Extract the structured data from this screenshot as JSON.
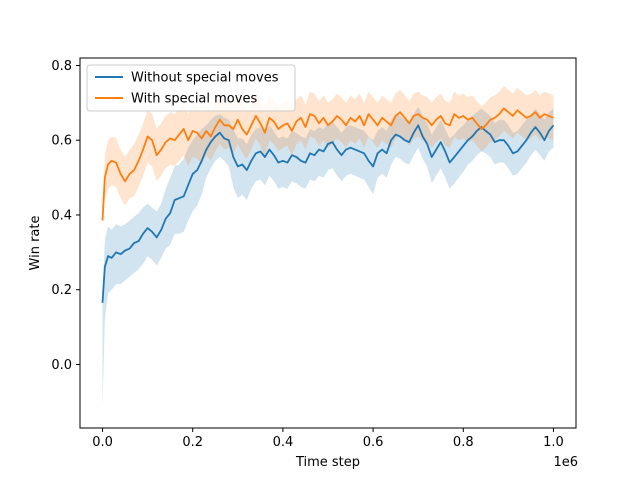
{
  "chart_data": {
    "type": "line",
    "xlabel": "Time step",
    "ylabel": "Win rate",
    "x_offset_text": "1e6",
    "xlim": [
      -0.05,
      1.05
    ],
    "ylim": [
      -0.17,
      0.82
    ],
    "xticks": [
      0.0,
      0.2,
      0.4,
      0.6,
      0.8,
      1.0
    ],
    "xtick_labels": [
      "0.0",
      "0.2",
      "0.4",
      "0.6",
      "0.8",
      "1.0"
    ],
    "yticks": [
      0.0,
      0.2,
      0.4,
      0.6,
      0.8
    ],
    "ytick_labels": [
      "0.0",
      "0.2",
      "0.4",
      "0.6",
      "0.8"
    ],
    "grid": false,
    "legend_position": "upper-left",
    "series": [
      {
        "name": "Without special moves",
        "color": "#1f77b4",
        "band_color": "#1f77b4",
        "x": [
          0.0,
          0.005,
          0.012,
          0.02,
          0.03,
          0.04,
          0.05,
          0.06,
          0.07,
          0.08,
          0.09,
          0.1,
          0.11,
          0.12,
          0.13,
          0.14,
          0.15,
          0.16,
          0.17,
          0.18,
          0.19,
          0.2,
          0.21,
          0.22,
          0.23,
          0.24,
          0.25,
          0.26,
          0.27,
          0.28,
          0.29,
          0.3,
          0.31,
          0.32,
          0.33,
          0.34,
          0.35,
          0.36,
          0.37,
          0.38,
          0.39,
          0.4,
          0.41,
          0.42,
          0.43,
          0.44,
          0.45,
          0.46,
          0.47,
          0.48,
          0.49,
          0.5,
          0.51,
          0.52,
          0.53,
          0.54,
          0.55,
          0.56,
          0.57,
          0.58,
          0.59,
          0.6,
          0.61,
          0.62,
          0.63,
          0.64,
          0.65,
          0.66,
          0.67,
          0.68,
          0.69,
          0.7,
          0.71,
          0.72,
          0.73,
          0.74,
          0.75,
          0.76,
          0.77,
          0.78,
          0.79,
          0.8,
          0.81,
          0.82,
          0.83,
          0.84,
          0.85,
          0.86,
          0.87,
          0.88,
          0.89,
          0.9,
          0.91,
          0.92,
          0.93,
          0.94,
          0.95,
          0.96,
          0.97,
          0.98,
          0.99,
          1.0
        ],
        "y": [
          0.165,
          0.26,
          0.29,
          0.285,
          0.3,
          0.295,
          0.305,
          0.31,
          0.325,
          0.33,
          0.35,
          0.365,
          0.355,
          0.34,
          0.36,
          0.39,
          0.405,
          0.44,
          0.445,
          0.45,
          0.48,
          0.51,
          0.52,
          0.545,
          0.575,
          0.595,
          0.61,
          0.62,
          0.605,
          0.6,
          0.555,
          0.53,
          0.535,
          0.52,
          0.545,
          0.565,
          0.57,
          0.555,
          0.575,
          0.56,
          0.54,
          0.545,
          0.54,
          0.56,
          0.555,
          0.545,
          0.54,
          0.565,
          0.56,
          0.575,
          0.57,
          0.59,
          0.595,
          0.575,
          0.56,
          0.575,
          0.58,
          0.575,
          0.57,
          0.565,
          0.545,
          0.53,
          0.565,
          0.575,
          0.565,
          0.6,
          0.615,
          0.61,
          0.6,
          0.595,
          0.62,
          0.64,
          0.61,
          0.59,
          0.555,
          0.575,
          0.595,
          0.57,
          0.54,
          0.555,
          0.57,
          0.585,
          0.6,
          0.61,
          0.625,
          0.635,
          0.625,
          0.615,
          0.595,
          0.6,
          0.6,
          0.585,
          0.565,
          0.57,
          0.585,
          0.6,
          0.62,
          0.635,
          0.62,
          0.6,
          0.625,
          0.64
        ],
        "upper": [
          0.165,
          0.33,
          0.37,
          0.36,
          0.375,
          0.37,
          0.375,
          0.385,
          0.395,
          0.405,
          0.42,
          0.43,
          0.42,
          0.41,
          0.43,
          0.47,
          0.5,
          0.53,
          0.535,
          0.55,
          0.58,
          0.6,
          0.615,
          0.63,
          0.64,
          0.655,
          0.665,
          0.67,
          0.66,
          0.655,
          0.63,
          0.605,
          0.605,
          0.59,
          0.615,
          0.63,
          0.635,
          0.62,
          0.64,
          0.625,
          0.605,
          0.61,
          0.605,
          0.625,
          0.62,
          0.61,
          0.605,
          0.63,
          0.625,
          0.635,
          0.63,
          0.645,
          0.65,
          0.635,
          0.62,
          0.635,
          0.64,
          0.635,
          0.63,
          0.625,
          0.61,
          0.6,
          0.625,
          0.635,
          0.625,
          0.655,
          0.67,
          0.665,
          0.655,
          0.65,
          0.67,
          0.69,
          0.665,
          0.645,
          0.615,
          0.635,
          0.655,
          0.63,
          0.605,
          0.615,
          0.63,
          0.64,
          0.655,
          0.665,
          0.675,
          0.685,
          0.675,
          0.665,
          0.645,
          0.655,
          0.655,
          0.64,
          0.62,
          0.625,
          0.64,
          0.655,
          0.67,
          0.685,
          0.67,
          0.655,
          0.675,
          0.685
        ],
        "lower": [
          -0.12,
          0.12,
          0.19,
          0.2,
          0.215,
          0.215,
          0.225,
          0.235,
          0.245,
          0.255,
          0.27,
          0.29,
          0.28,
          0.265,
          0.285,
          0.31,
          0.32,
          0.35,
          0.35,
          0.355,
          0.385,
          0.41,
          0.425,
          0.455,
          0.5,
          0.525,
          0.545,
          0.555,
          0.545,
          0.53,
          0.475,
          0.445,
          0.455,
          0.44,
          0.47,
          0.49,
          0.495,
          0.48,
          0.505,
          0.49,
          0.47,
          0.475,
          0.47,
          0.49,
          0.485,
          0.475,
          0.47,
          0.495,
          0.49,
          0.505,
          0.5,
          0.52,
          0.525,
          0.505,
          0.49,
          0.505,
          0.51,
          0.505,
          0.5,
          0.495,
          0.475,
          0.455,
          0.5,
          0.51,
          0.5,
          0.535,
          0.555,
          0.55,
          0.54,
          0.535,
          0.56,
          0.58,
          0.55,
          0.53,
          0.485,
          0.505,
          0.525,
          0.5,
          0.47,
          0.485,
          0.5,
          0.515,
          0.535,
          0.545,
          0.56,
          0.57,
          0.565,
          0.555,
          0.535,
          0.54,
          0.54,
          0.525,
          0.505,
          0.51,
          0.525,
          0.54,
          0.56,
          0.575,
          0.56,
          0.545,
          0.57,
          0.58
        ]
      },
      {
        "name": "With special moves",
        "color": "#ff7f0e",
        "band_color": "#ff7f0e",
        "x": [
          0.0,
          0.005,
          0.012,
          0.02,
          0.03,
          0.04,
          0.05,
          0.06,
          0.07,
          0.08,
          0.09,
          0.1,
          0.11,
          0.12,
          0.13,
          0.14,
          0.15,
          0.16,
          0.17,
          0.18,
          0.19,
          0.2,
          0.21,
          0.22,
          0.23,
          0.24,
          0.25,
          0.26,
          0.27,
          0.28,
          0.29,
          0.3,
          0.31,
          0.32,
          0.33,
          0.34,
          0.35,
          0.36,
          0.37,
          0.38,
          0.39,
          0.4,
          0.41,
          0.42,
          0.43,
          0.44,
          0.45,
          0.46,
          0.47,
          0.48,
          0.49,
          0.5,
          0.51,
          0.52,
          0.53,
          0.54,
          0.55,
          0.56,
          0.57,
          0.58,
          0.59,
          0.6,
          0.61,
          0.62,
          0.63,
          0.64,
          0.65,
          0.66,
          0.67,
          0.68,
          0.69,
          0.7,
          0.71,
          0.72,
          0.73,
          0.74,
          0.75,
          0.76,
          0.77,
          0.78,
          0.79,
          0.8,
          0.81,
          0.82,
          0.83,
          0.84,
          0.85,
          0.86,
          0.87,
          0.88,
          0.89,
          0.9,
          0.91,
          0.92,
          0.93,
          0.94,
          0.95,
          0.96,
          0.97,
          0.98,
          0.99,
          1.0
        ],
        "y": [
          0.385,
          0.5,
          0.535,
          0.545,
          0.54,
          0.51,
          0.49,
          0.51,
          0.52,
          0.545,
          0.575,
          0.61,
          0.6,
          0.56,
          0.575,
          0.595,
          0.605,
          0.6,
          0.615,
          0.63,
          0.6,
          0.625,
          0.62,
          0.605,
          0.625,
          0.61,
          0.635,
          0.655,
          0.64,
          0.64,
          0.63,
          0.655,
          0.63,
          0.615,
          0.64,
          0.665,
          0.645,
          0.62,
          0.66,
          0.65,
          0.63,
          0.64,
          0.645,
          0.625,
          0.65,
          0.66,
          0.635,
          0.67,
          0.665,
          0.645,
          0.66,
          0.64,
          0.65,
          0.665,
          0.655,
          0.64,
          0.66,
          0.65,
          0.665,
          0.64,
          0.67,
          0.655,
          0.64,
          0.66,
          0.65,
          0.64,
          0.665,
          0.675,
          0.66,
          0.645,
          0.665,
          0.67,
          0.66,
          0.655,
          0.64,
          0.655,
          0.665,
          0.645,
          0.64,
          0.67,
          0.66,
          0.665,
          0.655,
          0.66,
          0.645,
          0.63,
          0.64,
          0.655,
          0.66,
          0.67,
          0.685,
          0.675,
          0.665,
          0.68,
          0.67,
          0.66,
          0.665,
          0.675,
          0.66,
          0.67,
          0.665,
          0.66
        ],
        "upper": [
          0.385,
          0.56,
          0.6,
          0.61,
          0.605,
          0.575,
          0.555,
          0.575,
          0.59,
          0.615,
          0.645,
          0.68,
          0.67,
          0.63,
          0.645,
          0.665,
          0.675,
          0.67,
          0.685,
          0.7,
          0.67,
          0.695,
          0.69,
          0.675,
          0.69,
          0.675,
          0.7,
          0.72,
          0.705,
          0.7,
          0.695,
          0.72,
          0.695,
          0.68,
          0.705,
          0.725,
          0.705,
          0.685,
          0.72,
          0.71,
          0.69,
          0.7,
          0.705,
          0.69,
          0.71,
          0.72,
          0.695,
          0.73,
          0.725,
          0.705,
          0.72,
          0.7,
          0.71,
          0.725,
          0.715,
          0.7,
          0.72,
          0.71,
          0.725,
          0.7,
          0.73,
          0.715,
          0.7,
          0.72,
          0.71,
          0.7,
          0.725,
          0.735,
          0.72,
          0.705,
          0.725,
          0.73,
          0.72,
          0.715,
          0.7,
          0.715,
          0.725,
          0.705,
          0.7,
          0.73,
          0.72,
          0.725,
          0.715,
          0.72,
          0.705,
          0.69,
          0.7,
          0.715,
          0.72,
          0.73,
          0.745,
          0.735,
          0.725,
          0.74,
          0.73,
          0.72,
          0.725,
          0.735,
          0.72,
          0.73,
          0.725,
          0.72
        ],
        "lower": [
          0.385,
          0.44,
          0.47,
          0.48,
          0.475,
          0.445,
          0.425,
          0.445,
          0.45,
          0.475,
          0.505,
          0.54,
          0.53,
          0.49,
          0.505,
          0.525,
          0.535,
          0.53,
          0.545,
          0.56,
          0.53,
          0.555,
          0.55,
          0.535,
          0.56,
          0.545,
          0.57,
          0.59,
          0.575,
          0.58,
          0.565,
          0.59,
          0.565,
          0.55,
          0.575,
          0.605,
          0.585,
          0.555,
          0.6,
          0.59,
          0.57,
          0.58,
          0.585,
          0.56,
          0.59,
          0.6,
          0.575,
          0.61,
          0.605,
          0.585,
          0.6,
          0.58,
          0.59,
          0.605,
          0.595,
          0.58,
          0.6,
          0.59,
          0.605,
          0.58,
          0.61,
          0.595,
          0.58,
          0.6,
          0.59,
          0.58,
          0.605,
          0.615,
          0.6,
          0.585,
          0.605,
          0.61,
          0.6,
          0.595,
          0.58,
          0.595,
          0.605,
          0.585,
          0.58,
          0.61,
          0.6,
          0.605,
          0.595,
          0.6,
          0.585,
          0.57,
          0.58,
          0.595,
          0.6,
          0.61,
          0.625,
          0.615,
          0.605,
          0.62,
          0.61,
          0.6,
          0.605,
          0.615,
          0.6,
          0.61,
          0.605,
          0.6
        ]
      }
    ]
  }
}
